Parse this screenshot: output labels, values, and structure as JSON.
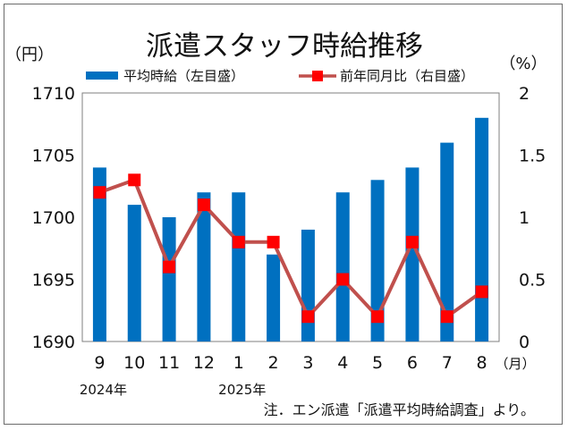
{
  "chart_data": {
    "type": "bar+line",
    "title": "派遣スタッフ時給推移",
    "left_axis_unit": "（円）",
    "right_axis_unit": "（%）",
    "left_ylim": [
      1690,
      1710
    ],
    "left_ticks": [
      "1710",
      "1705",
      "1700",
      "1695",
      "1690"
    ],
    "right_ylim": [
      0,
      2
    ],
    "right_ticks": [
      "2",
      "1.5",
      "1",
      "0.5",
      "0"
    ],
    "categories": [
      "9",
      "10",
      "11",
      "12",
      "1",
      "2",
      "3",
      "4",
      "5",
      "6",
      "7",
      "8"
    ],
    "x_unit": "（月）",
    "year_labels": [
      {
        "text": "2024年",
        "category_index": 0
      },
      {
        "text": "2025年",
        "category_index": 4
      }
    ],
    "series": [
      {
        "name": "平均時給（左目盛）",
        "type": "bar",
        "axis": "left",
        "color": "#0070c0",
        "values": [
          1704,
          1701,
          1700,
          1702,
          1702,
          1697,
          1699,
          1702,
          1703,
          1704,
          1706,
          1708
        ]
      },
      {
        "name": "前年同月比（右目盛）",
        "type": "line",
        "axis": "right",
        "color": "#c0504d",
        "marker_color": "#ff0000",
        "values": [
          1.2,
          1.3,
          0.6,
          1.1,
          0.8,
          0.8,
          0.2,
          0.5,
          0.2,
          0.8,
          0.2,
          0.4
        ]
      }
    ],
    "note": "注．エン派遣「派遣平均時給調査」より。"
  }
}
